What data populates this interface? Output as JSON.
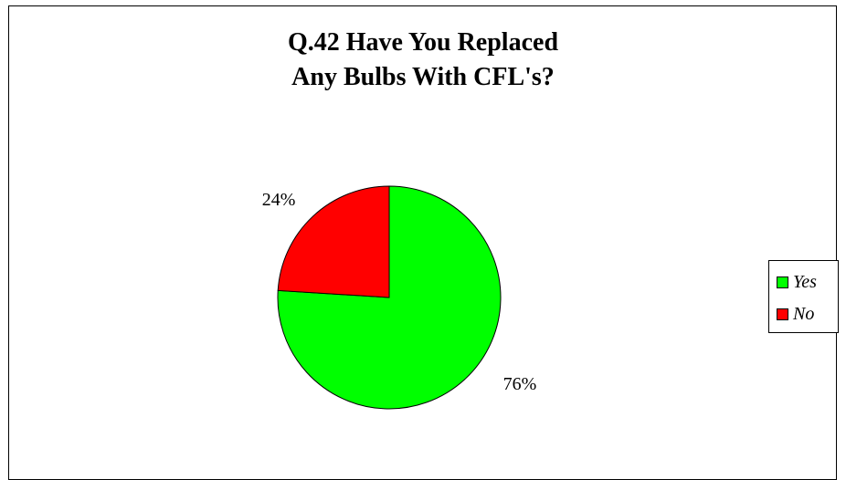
{
  "chart_data": {
    "type": "pie",
    "title_lines": [
      "Q.42  Have You Replaced",
      "Any Bulbs With CFL's?"
    ],
    "categories": [
      "Yes",
      "No"
    ],
    "values": [
      76,
      24
    ],
    "labels": [
      "76%",
      "24%"
    ],
    "colors": [
      "#00ff00",
      "#ff0000"
    ],
    "legend": {
      "placement": "right",
      "entries": [
        "Yes",
        "No"
      ]
    }
  }
}
